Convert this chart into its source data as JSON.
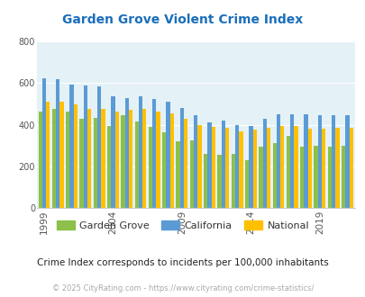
{
  "title": "Garden Grove Violent Crime Index",
  "subtitle": "Crime Index corresponds to incidents per 100,000 inhabitants",
  "footer": "© 2025 CityRating.com - https://www.cityrating.com/crime-statistics/",
  "years": [
    1999,
    2000,
    2001,
    2002,
    2003,
    2004,
    2005,
    2006,
    2007,
    2008,
    2009,
    2010,
    2011,
    2012,
    2013,
    2014,
    2015,
    2016,
    2017,
    2018,
    2019,
    2020,
    2021
  ],
  "garden_grove": [
    465,
    475,
    465,
    430,
    435,
    395,
    445,
    415,
    390,
    365,
    320,
    325,
    260,
    255,
    260,
    230,
    295,
    310,
    345,
    295,
    300,
    295,
    300
  ],
  "california": [
    625,
    620,
    595,
    590,
    585,
    535,
    530,
    535,
    525,
    510,
    480,
    445,
    410,
    420,
    400,
    395,
    430,
    450,
    450,
    450,
    445,
    445,
    445
  ],
  "national": [
    510,
    510,
    500,
    475,
    475,
    465,
    470,
    475,
    465,
    455,
    430,
    400,
    390,
    385,
    370,
    375,
    385,
    395,
    395,
    380,
    380,
    385,
    385
  ],
  "ylim": [
    0,
    800
  ],
  "yticks": [
    0,
    200,
    400,
    600,
    800
  ],
  "colors": {
    "garden_grove": "#8dc04a",
    "california": "#5b9bd5",
    "national": "#ffc000"
  },
  "bg_color": "#e4f1f6",
  "title_color": "#1a6fba",
  "subtitle_color": "#222222",
  "footer_color": "#aaaaaa",
  "tick_label_years": [
    1999,
    2004,
    2009,
    2014,
    2019
  ]
}
